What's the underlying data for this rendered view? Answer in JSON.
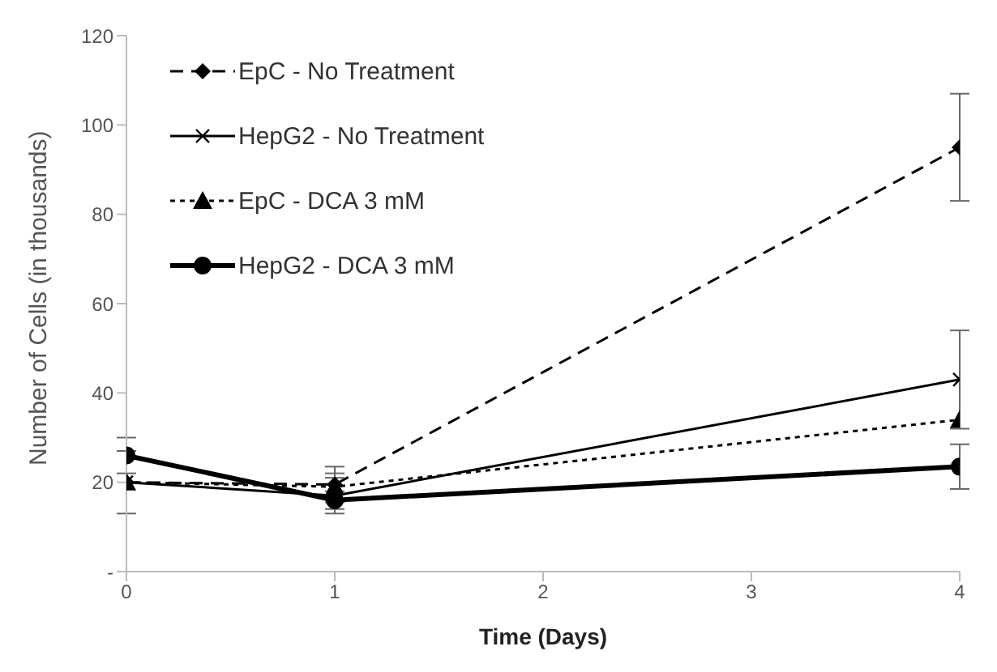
{
  "chart_data": {
    "type": "line",
    "xlabel": "Time (Days)",
    "ylabel": "Number of Cells (in thousands)",
    "x": [
      0,
      1,
      4
    ],
    "series": [
      {
        "name": "EpC - No Treatment",
        "color": "#000000",
        "values": [
          20,
          19.5,
          95
        ],
        "errors": [
          7,
          4,
          12
        ],
        "marker": "diamond",
        "line_style": "dashed"
      },
      {
        "name": "HepG2 - No Treatment",
        "color": "#000000",
        "values": [
          20,
          17,
          43
        ],
        "errors": [
          null,
          4,
          11
        ],
        "marker": "cross",
        "line_style": "solid"
      },
      {
        "name": "EpC - DCA 3 mM",
        "color": "#000000",
        "values": [
          20,
          19,
          34
        ],
        "errors": [
          null,
          3,
          null
        ],
        "marker": "triangle",
        "line_style": "dotted"
      },
      {
        "name": "HepG2 - DCA 3 mM",
        "color": "#000000",
        "values": [
          26,
          16,
          23.5
        ],
        "errors": [
          4,
          2,
          5
        ],
        "marker": "circle",
        "line_style": "solid"
      }
    ],
    "xlim": [
      0,
      4
    ],
    "xticks": [
      0,
      1,
      2,
      3,
      4
    ],
    "ylim": [
      0,
      120
    ],
    "yticks": [
      {
        "value": 0,
        "label": "-"
      },
      20,
      40,
      60,
      80,
      100,
      120
    ],
    "grid": false,
    "legend": "top left"
  }
}
